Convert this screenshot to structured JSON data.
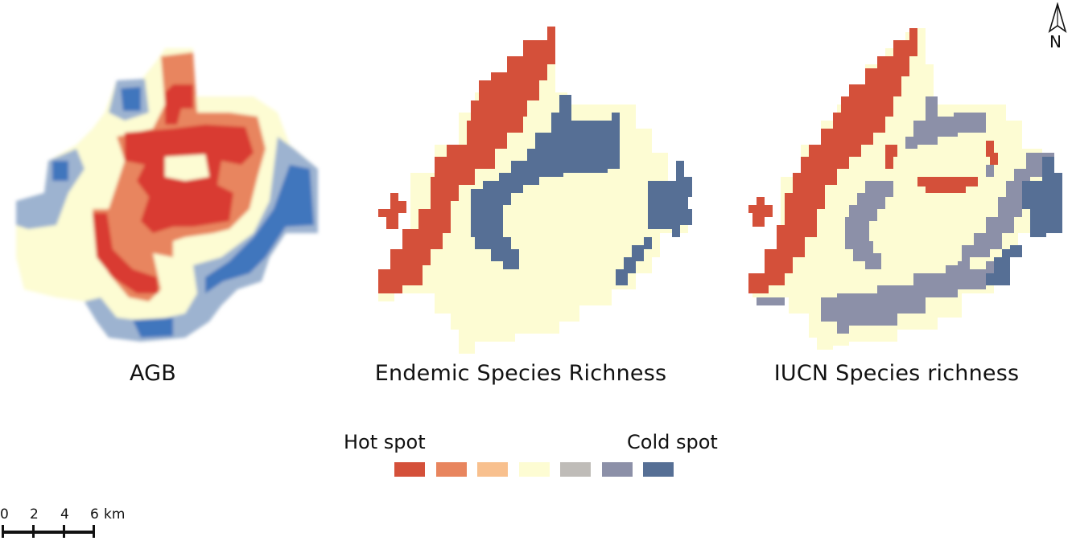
{
  "colors": {
    "hot3": "#d4503a",
    "hot2": "#e8855e",
    "hot1": "#f8c08e",
    "neutral": "#fdfcd3",
    "cold1": "#bfbcb8",
    "cold2": "#8c90a8",
    "cold3": "#566f95",
    "agb_red": "#d93a33",
    "agb_blue": "#3f76bd",
    "agb_lightblue": "#9db3d0"
  },
  "maps": [
    {
      "id": "agb",
      "label": "AGB"
    },
    {
      "id": "endemic",
      "label": "Endemic Species Richness"
    },
    {
      "id": "iucn",
      "label": "IUCN Species richness"
    }
  ],
  "legend": {
    "hot_label": "Hot spot",
    "cold_label": "Cold spot",
    "classes": [
      "hot3",
      "hot2",
      "hot1",
      "neutral",
      "cold1",
      "cold2",
      "cold3"
    ]
  },
  "north_arrow": {
    "label": "N",
    "icon": "north-arrow-icon"
  },
  "scale_bar": {
    "ticks": [
      "0",
      "2",
      "4",
      "6"
    ],
    "unit": "km"
  }
}
